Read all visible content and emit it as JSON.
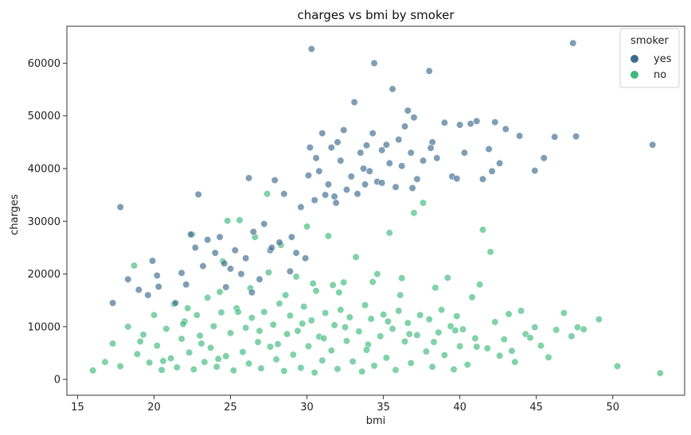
{
  "chart_data": {
    "type": "scatter",
    "title": "charges vs bmi by smoker",
    "xlabel": "bmi",
    "ylabel": "charges",
    "xlim": [
      14.3,
      54.7
    ],
    "ylim": [
      -3000,
      67000
    ],
    "x_ticks": [
      15,
      20,
      25,
      30,
      35,
      40,
      45,
      50
    ],
    "y_ticks": [
      0,
      10000,
      20000,
      30000,
      40000,
      50000,
      60000
    ],
    "x_tick_labels": [
      "15",
      "20",
      "25",
      "30",
      "35",
      "40",
      "45",
      "50"
    ],
    "y_tick_labels": [
      "0",
      "10000",
      "20000",
      "30000",
      "40000",
      "50000",
      "60000"
    ],
    "grid": false,
    "legend": {
      "title": "smoker",
      "position": "top-right",
      "entries": [
        "yes",
        "no"
      ]
    },
    "series": [
      {
        "name": "yes",
        "color": "#3b6a8f",
        "points": [
          [
            17.3,
            14500
          ],
          [
            17.8,
            32700
          ],
          [
            18.3,
            19000
          ],
          [
            19.0,
            17000
          ],
          [
            19.6,
            16000
          ],
          [
            19.9,
            22500
          ],
          [
            20.2,
            19700
          ],
          [
            21.8,
            20200
          ],
          [
            22.1,
            18000
          ],
          [
            22.4,
            27500
          ],
          [
            22.7,
            25000
          ],
          [
            22.9,
            35100
          ],
          [
            23.2,
            21500
          ],
          [
            23.5,
            26500
          ],
          [
            24.0,
            24000
          ],
          [
            24.3,
            27000
          ],
          [
            24.6,
            22000
          ],
          [
            25.0,
            21000
          ],
          [
            25.3,
            24500
          ],
          [
            25.7,
            20000
          ],
          [
            26.0,
            23000
          ],
          [
            26.2,
            38200
          ],
          [
            26.5,
            28000
          ],
          [
            26.9,
            19000
          ],
          [
            27.2,
            29500
          ],
          [
            27.6,
            24500
          ],
          [
            27.9,
            37800
          ],
          [
            28.2,
            26000
          ],
          [
            28.5,
            35200
          ],
          [
            28.9,
            20500
          ],
          [
            29.3,
            24000
          ],
          [
            29.6,
            32700
          ],
          [
            29.9,
            23000
          ],
          [
            30.1,
            38700
          ],
          [
            30.2,
            44000
          ],
          [
            30.3,
            62700
          ],
          [
            30.5,
            34000
          ],
          [
            30.6,
            42000
          ],
          [
            30.8,
            39500
          ],
          [
            31.0,
            46700
          ],
          [
            31.2,
            35000
          ],
          [
            31.4,
            37000
          ],
          [
            31.6,
            44000
          ],
          [
            31.8,
            34700
          ],
          [
            32.0,
            45000
          ],
          [
            32.2,
            41500
          ],
          [
            32.4,
            47300
          ],
          [
            32.6,
            36000
          ],
          [
            32.9,
            38500
          ],
          [
            33.1,
            52600
          ],
          [
            33.3,
            35200
          ],
          [
            33.5,
            43000
          ],
          [
            33.7,
            40000
          ],
          [
            33.9,
            44400
          ],
          [
            34.1,
            39500
          ],
          [
            34.3,
            46700
          ],
          [
            34.4,
            60000
          ],
          [
            34.6,
            37500
          ],
          [
            34.9,
            43500
          ],
          [
            35.2,
            44500
          ],
          [
            35.4,
            41000
          ],
          [
            35.6,
            55100
          ],
          [
            35.8,
            36500
          ],
          [
            36.0,
            45500
          ],
          [
            36.2,
            40500
          ],
          [
            36.4,
            48000
          ],
          [
            36.6,
            51000
          ],
          [
            36.8,
            43000
          ],
          [
            37.0,
            49700
          ],
          [
            37.2,
            38000
          ],
          [
            37.6,
            41500
          ],
          [
            38.0,
            58500
          ],
          [
            38.2,
            45000
          ],
          [
            38.5,
            42000
          ],
          [
            39.0,
            48700
          ],
          [
            39.5,
            38500
          ],
          [
            40.0,
            48300
          ],
          [
            40.3,
            43000
          ],
          [
            40.7,
            48500
          ],
          [
            41.1,
            49000
          ],
          [
            41.5,
            38000
          ],
          [
            41.9,
            43700
          ],
          [
            42.1,
            39500
          ],
          [
            42.6,
            41000
          ],
          [
            43.0,
            47500
          ],
          [
            43.9,
            46200
          ],
          [
            44.9,
            39600
          ],
          [
            45.5,
            42000
          ],
          [
            46.2,
            46000
          ],
          [
            47.4,
            63800
          ],
          [
            47.6,
            46100
          ],
          [
            52.6,
            44500
          ],
          [
            20.3,
            17600
          ],
          [
            21.4,
            14500
          ],
          [
            24.7,
            17500
          ],
          [
            26.4,
            16500
          ],
          [
            27.7,
            25000
          ],
          [
            29.0,
            27000
          ],
          [
            31.9,
            33500
          ],
          [
            33.8,
            37000
          ],
          [
            34.9,
            37300
          ],
          [
            36.9,
            36300
          ],
          [
            38.1,
            43900
          ],
          [
            39.8,
            38100
          ],
          [
            42.3,
            48800
          ]
        ]
      },
      {
        "name": "no",
        "color": "#3cba7a",
        "points": [
          [
            16.0,
            1700
          ],
          [
            16.8,
            3300
          ],
          [
            17.3,
            6800
          ],
          [
            17.8,
            2500
          ],
          [
            18.3,
            10000
          ],
          [
            18.7,
            21600
          ],
          [
            18.9,
            4800
          ],
          [
            19.3,
            8500
          ],
          [
            19.7,
            3200
          ],
          [
            20.0,
            12200
          ],
          [
            20.2,
            6400
          ],
          [
            20.5,
            1800
          ],
          [
            20.8,
            9600
          ],
          [
            21.1,
            4000
          ],
          [
            21.3,
            14300
          ],
          [
            21.5,
            2300
          ],
          [
            21.8,
            7700
          ],
          [
            22.0,
            11000
          ],
          [
            22.3,
            5100
          ],
          [
            22.5,
            27500
          ],
          [
            22.6,
            1900
          ],
          [
            22.8,
            12200
          ],
          [
            23.0,
            8300
          ],
          [
            23.3,
            3300
          ],
          [
            23.5,
            15500
          ],
          [
            23.7,
            6000
          ],
          [
            23.9,
            10100
          ],
          [
            24.1,
            2400
          ],
          [
            24.4,
            12700
          ],
          [
            24.5,
            22400
          ],
          [
            24.7,
            4400
          ],
          [
            24.8,
            30100
          ],
          [
            25.0,
            8800
          ],
          [
            25.2,
            1700
          ],
          [
            25.4,
            13500
          ],
          [
            25.6,
            30200
          ],
          [
            25.8,
            5200
          ],
          [
            26.0,
            9800
          ],
          [
            26.2,
            3000
          ],
          [
            26.4,
            11700
          ],
          [
            26.6,
            27000
          ],
          [
            26.8,
            7100
          ],
          [
            27.0,
            2100
          ],
          [
            27.2,
            12800
          ],
          [
            27.4,
            35200
          ],
          [
            27.6,
            6200
          ],
          [
            27.8,
            10400
          ],
          [
            28.0,
            3800
          ],
          [
            28.2,
            14400
          ],
          [
            28.3,
            25500
          ],
          [
            28.5,
            1600
          ],
          [
            28.7,
            8600
          ],
          [
            28.9,
            12100
          ],
          [
            29.1,
            4700
          ],
          [
            29.3,
            19500
          ],
          [
            29.4,
            9200
          ],
          [
            29.6,
            2200
          ],
          [
            29.8,
            13800
          ],
          [
            30.0,
            29000
          ],
          [
            30.1,
            6300
          ],
          [
            30.3,
            11200
          ],
          [
            30.5,
            1300
          ],
          [
            30.6,
            16800
          ],
          [
            30.8,
            8100
          ],
          [
            31.0,
            3600
          ],
          [
            31.2,
            12600
          ],
          [
            31.4,
            27200
          ],
          [
            31.6,
            5500
          ],
          [
            31.8,
            10300
          ],
          [
            32.0,
            2000
          ],
          [
            32.2,
            13200
          ],
          [
            32.4,
            18400
          ],
          [
            32.6,
            7300
          ],
          [
            32.8,
            11800
          ],
          [
            33.0,
            3400
          ],
          [
            33.2,
            23200
          ],
          [
            33.4,
            9100
          ],
          [
            33.6,
            1500
          ],
          [
            33.8,
            14100
          ],
          [
            34.0,
            6600
          ],
          [
            34.2,
            11500
          ],
          [
            34.4,
            2600
          ],
          [
            34.6,
            20000
          ],
          [
            34.8,
            8200
          ],
          [
            35.0,
            12300
          ],
          [
            35.2,
            4100
          ],
          [
            35.4,
            27800
          ],
          [
            35.6,
            9600
          ],
          [
            35.8,
            1800
          ],
          [
            36.0,
            13000
          ],
          [
            36.2,
            19200
          ],
          [
            36.4,
            7200
          ],
          [
            36.6,
            10700
          ],
          [
            36.8,
            3100
          ],
          [
            37.0,
            31600
          ],
          [
            37.2,
            8400
          ],
          [
            37.4,
            12200
          ],
          [
            37.6,
            33500
          ],
          [
            37.8,
            5300
          ],
          [
            38.0,
            11400
          ],
          [
            38.2,
            2400
          ],
          [
            38.4,
            17400
          ],
          [
            38.6,
            8900
          ],
          [
            38.8,
            13200
          ],
          [
            39.0,
            4600
          ],
          [
            39.2,
            19300
          ],
          [
            39.4,
            10100
          ],
          [
            39.6,
            1900
          ],
          [
            39.8,
            12000
          ],
          [
            40.0,
            6300
          ],
          [
            40.2,
            9500
          ],
          [
            40.5,
            2800
          ],
          [
            40.8,
            15600
          ],
          [
            41.0,
            7800
          ],
          [
            41.3,
            18000
          ],
          [
            41.5,
            28400
          ],
          [
            41.8,
            5900
          ],
          [
            42.0,
            24200
          ],
          [
            42.3,
            10900
          ],
          [
            42.6,
            4500
          ],
          [
            42.9,
            7600
          ],
          [
            43.2,
            12400
          ],
          [
            43.6,
            3300
          ],
          [
            44.0,
            13000
          ],
          [
            44.3,
            8600
          ],
          [
            44.9,
            9900
          ],
          [
            45.3,
            6400
          ],
          [
            45.8,
            4200
          ],
          [
            46.3,
            9400
          ],
          [
            46.8,
            12600
          ],
          [
            47.3,
            8200
          ],
          [
            47.7,
            9900
          ],
          [
            48.1,
            9500
          ],
          [
            49.1,
            11400
          ],
          [
            50.3,
            2500
          ],
          [
            53.1,
            1200
          ],
          [
            19.1,
            7200
          ],
          [
            20.6,
            3500
          ],
          [
            21.9,
            10500
          ],
          [
            23.1,
            6800
          ],
          [
            24.2,
            3900
          ],
          [
            25.5,
            12800
          ],
          [
            26.9,
            9200
          ],
          [
            28.1,
            6700
          ],
          [
            29.7,
            10600
          ],
          [
            31.1,
            7800
          ],
          [
            32.5,
            9900
          ],
          [
            33.9,
            5600
          ],
          [
            35.3,
            11000
          ],
          [
            36.7,
            8600
          ],
          [
            38.3,
            7100
          ],
          [
            39.7,
            9300
          ],
          [
            41.1,
            6200
          ],
          [
            43.4,
            5400
          ],
          [
            44.6,
            7900
          ],
          [
            36.1,
            16000
          ],
          [
            34.3,
            18500
          ],
          [
            32.1,
            16500
          ],
          [
            30.4,
            18200
          ],
          [
            28.6,
            16000
          ],
          [
            26.3,
            17300
          ],
          [
            24.3,
            16600
          ],
          [
            22.2,
            13500
          ],
          [
            27.5,
            20300
          ],
          [
            31.7,
            17900
          ]
        ]
      }
    ]
  }
}
